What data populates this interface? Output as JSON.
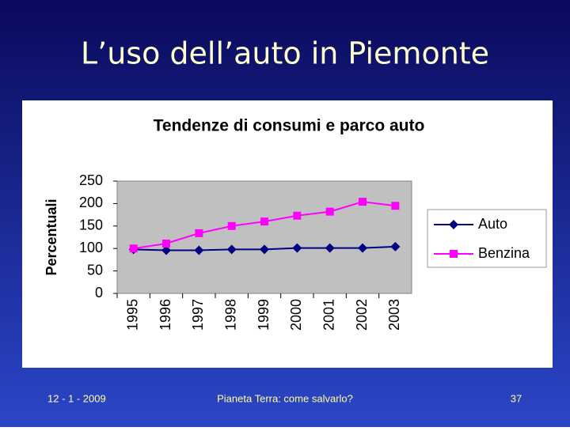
{
  "slide": {
    "title": "L’uso dell’auto in Piemonte",
    "footer_left": "12 - 1 - 2009",
    "footer_center": "Pianeta Terra: come salvarlo?",
    "page_number": "37"
  },
  "chart_data": {
    "type": "line",
    "title": "Tendenze di consumi e parco auto",
    "y_label": "Percentuali",
    "categories": [
      "1995",
      "1996",
      "1997",
      "1998",
      "1999",
      "2000",
      "2001",
      "2002",
      "2003"
    ],
    "series": [
      {
        "name": "Auto",
        "color": "#000080",
        "marker": "diamond",
        "values": [
          98,
          96,
          96,
          98,
          98,
          101,
          101,
          101,
          104
        ]
      },
      {
        "name": "Benzina",
        "color": "#ff00ff",
        "marker": "square",
        "values": [
          100,
          111,
          134,
          150,
          160,
          173,
          182,
          204,
          195
        ]
      }
    ],
    "ylim": [
      0,
      250
    ],
    "yticks": [
      0,
      50,
      100,
      150,
      200,
      250
    ],
    "grid": false,
    "legend": "right"
  }
}
